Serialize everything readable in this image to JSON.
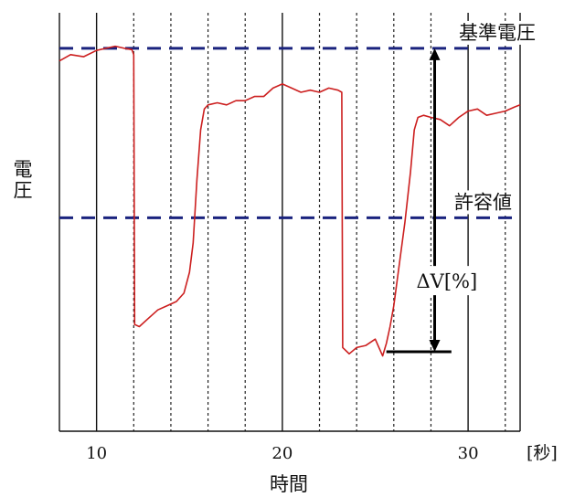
{
  "chart_data": {
    "type": "line",
    "title": "",
    "xlabel": "時間",
    "xunit": "[秒]",
    "ylabel": "電圧",
    "xlim": [
      8,
      32.8
    ],
    "ylim": [
      0,
      1
    ],
    "x_ticks": [
      10,
      20,
      30
    ],
    "solid_gridlines_x": [
      8,
      10,
      20,
      30,
      32.8
    ],
    "dashed_gridlines_x": [
      12,
      14,
      16,
      18,
      22,
      24,
      26,
      28,
      32
    ],
    "reference_lines": [
      {
        "label": "基準電圧",
        "y": 0.915,
        "style": "dashed",
        "color": "#1a237e"
      },
      {
        "label": "許容値",
        "y": 0.51,
        "style": "dashed",
        "color": "#1a237e"
      }
    ],
    "annotation": {
      "label": "ΔV[%]",
      "x": 28.2,
      "y_from": 0.915,
      "y_to": 0.19
    },
    "drop_marker": {
      "y": 0.19,
      "x_from": 25.6,
      "x_to": 29.1
    },
    "series": [
      {
        "color": "#cc1f1f",
        "x": [
          8.0,
          8.6,
          9.3,
          10.0,
          10.5,
          11.0,
          11.5,
          11.9,
          12.0,
          12.05,
          12.3,
          12.8,
          13.3,
          13.8,
          14.3,
          14.7,
          15.0,
          15.2,
          15.4,
          15.6,
          15.8,
          16.0,
          16.5,
          17.0,
          17.5,
          18.0,
          18.5,
          19.0,
          19.5,
          20.0,
          20.5,
          21.0,
          21.5,
          22.0,
          22.5,
          23.0,
          23.2,
          23.25,
          23.6,
          24.0,
          24.5,
          25.0,
          25.4,
          25.6,
          25.8,
          26.0,
          26.3,
          26.6,
          26.9,
          27.1,
          27.3,
          27.6,
          28.0,
          28.5,
          29.0,
          29.5,
          30.0,
          30.5,
          31.0,
          31.5,
          32.0,
          32.5,
          32.8
        ],
        "y": [
          0.885,
          0.9,
          0.895,
          0.91,
          0.915,
          0.92,
          0.915,
          0.912,
          0.9,
          0.255,
          0.25,
          0.27,
          0.29,
          0.3,
          0.31,
          0.33,
          0.38,
          0.45,
          0.6,
          0.72,
          0.77,
          0.78,
          0.785,
          0.78,
          0.79,
          0.79,
          0.8,
          0.8,
          0.82,
          0.83,
          0.82,
          0.81,
          0.815,
          0.81,
          0.82,
          0.815,
          0.81,
          0.2,
          0.185,
          0.2,
          0.205,
          0.22,
          0.18,
          0.21,
          0.25,
          0.3,
          0.4,
          0.5,
          0.62,
          0.72,
          0.75,
          0.755,
          0.75,
          0.745,
          0.73,
          0.75,
          0.765,
          0.77,
          0.755,
          0.76,
          0.765,
          0.775,
          0.78
        ]
      }
    ]
  }
}
